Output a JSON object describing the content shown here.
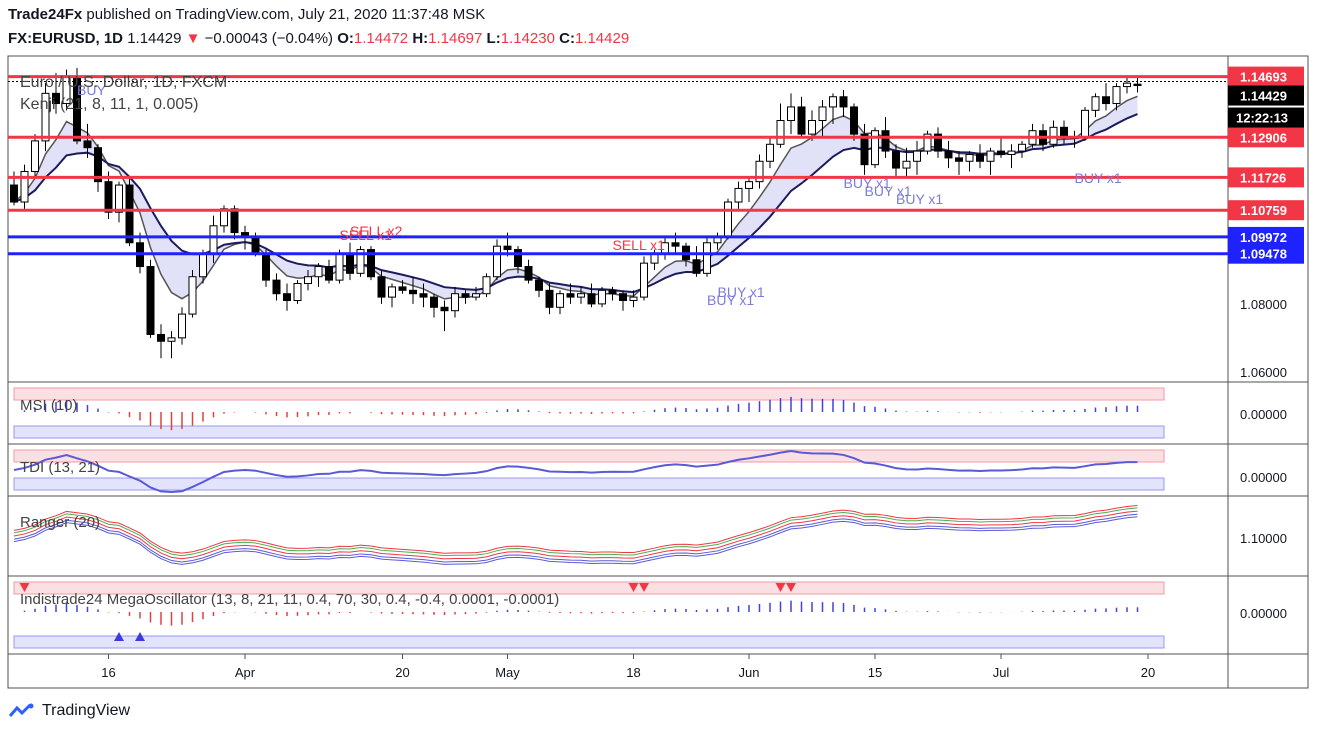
{
  "header": {
    "publisher": "Trade24Fx",
    "published_text": "published on TradingView.com, July 21, 2020 11:37:48 MSK",
    "symbol": "FX:EURUSD, 1D",
    "last": "1.14429",
    "change": "−0.00043 (−0.04%)",
    "o_label": "O:",
    "o": "1.14472",
    "h_label": "H:",
    "h": "1.14697",
    "l_label": "L:",
    "l": "1.14230",
    "c_label": "C:",
    "c": "1.14429"
  },
  "footer": {
    "brand": "TradingView"
  },
  "chart_data": {
    "type": "candlestick",
    "title": "Euro / U.S. Dollar, 1D, FXCM",
    "indicator_label": "Kenji (21, 8, 11, 1, 0.005)",
    "x_ticks": [
      "16",
      "Apr",
      "20",
      "May",
      "18",
      "Jun",
      "15",
      "Jul",
      "20"
    ],
    "y_ticks": [
      "1.08000",
      "1.06000"
    ],
    "y_range": [
      1.057,
      1.153
    ],
    "price_lines": [
      {
        "label": "1.14693",
        "value": 1.14693,
        "color": "#f23645"
      },
      {
        "label": "1.12906",
        "value": 1.12906,
        "color": "#f23645"
      },
      {
        "label": "1.11726",
        "value": 1.11726,
        "color": "#f23645"
      },
      {
        "label": "1.10759",
        "value": 1.10759,
        "color": "#f23645"
      },
      {
        "label": "1.09972",
        "value": 1.09972,
        "color": "#1e22ff"
      },
      {
        "label": "1.09478",
        "value": 1.09478,
        "color": "#1e22ff"
      }
    ],
    "last_price_label": "1.14429",
    "countdown_label": "12:22:13",
    "annotations": [
      "BUY",
      "SELL x1",
      "SELL x2",
      "SELL x1",
      "BUY x1",
      "BUY x1",
      "BUY x1",
      "BUY x1",
      "BUY x1",
      "BUY x1"
    ],
    "candles": [
      [
        1.115,
        1.119,
        1.109,
        1.11
      ],
      [
        1.11,
        1.121,
        1.108,
        1.119
      ],
      [
        1.119,
        1.13,
        1.117,
        1.128
      ],
      [
        1.128,
        1.145,
        1.125,
        1.142
      ],
      [
        1.142,
        1.148,
        1.136,
        1.139
      ],
      [
        1.139,
        1.149,
        1.137,
        1.147
      ],
      [
        1.147,
        1.1495,
        1.127,
        1.128
      ],
      [
        1.128,
        1.133,
        1.123,
        1.126
      ],
      [
        1.126,
        1.127,
        1.113,
        1.116
      ],
      [
        1.116,
        1.119,
        1.105,
        1.107
      ],
      [
        1.107,
        1.116,
        1.104,
        1.115
      ],
      [
        1.115,
        1.117,
        1.097,
        1.098
      ],
      [
        1.098,
        1.101,
        1.089,
        1.091
      ],
      [
        1.091,
        1.093,
        1.07,
        1.071
      ],
      [
        1.071,
        1.074,
        1.064,
        1.069
      ],
      [
        1.069,
        1.072,
        1.064,
        1.07
      ],
      [
        1.07,
        1.079,
        1.068,
        1.077
      ],
      [
        1.077,
        1.09,
        1.076,
        1.088
      ],
      [
        1.088,
        1.096,
        1.086,
        1.095
      ],
      [
        1.095,
        1.106,
        1.092,
        1.103
      ],
      [
        1.103,
        1.109,
        1.101,
        1.108
      ],
      [
        1.108,
        1.109,
        1.099,
        1.101
      ],
      [
        1.101,
        1.103,
        1.096,
        1.1
      ],
      [
        1.1,
        1.101,
        1.094,
        1.095
      ],
      [
        1.095,
        1.096,
        1.085,
        1.087
      ],
      [
        1.087,
        1.089,
        1.081,
        1.083
      ],
      [
        1.083,
        1.086,
        1.078,
        1.081
      ],
      [
        1.081,
        1.087,
        1.08,
        1.086
      ],
      [
        1.086,
        1.09,
        1.084,
        1.088
      ],
      [
        1.088,
        1.092,
        1.085,
        1.091
      ],
      [
        1.091,
        1.093,
        1.086,
        1.087
      ],
      [
        1.087,
        1.096,
        1.086,
        1.095
      ],
      [
        1.095,
        1.098,
        1.087,
        1.089
      ],
      [
        1.089,
        1.097,
        1.088,
        1.096
      ],
      [
        1.096,
        1.097,
        1.087,
        1.088
      ],
      [
        1.088,
        1.09,
        1.08,
        1.082
      ],
      [
        1.082,
        1.086,
        1.079,
        1.085
      ],
      [
        1.085,
        1.087,
        1.083,
        1.084
      ],
      [
        1.084,
        1.088,
        1.08,
        1.083
      ],
      [
        1.083,
        1.086,
        1.079,
        1.082
      ],
      [
        1.082,
        1.083,
        1.076,
        1.079
      ],
      [
        1.079,
        1.081,
        1.072,
        1.078
      ],
      [
        1.078,
        1.085,
        1.076,
        1.083
      ],
      [
        1.083,
        1.084,
        1.08,
        1.082
      ],
      [
        1.082,
        1.085,
        1.081,
        1.083
      ],
      [
        1.083,
        1.089,
        1.082,
        1.088
      ],
      [
        1.088,
        1.099,
        1.087,
        1.097
      ],
      [
        1.097,
        1.101,
        1.094,
        1.096
      ],
      [
        1.096,
        1.097,
        1.089,
        1.091
      ],
      [
        1.091,
        1.093,
        1.086,
        1.087
      ],
      [
        1.087,
        1.088,
        1.082,
        1.084
      ],
      [
        1.084,
        1.086,
        1.077,
        1.079
      ],
      [
        1.079,
        1.084,
        1.077,
        1.083
      ],
      [
        1.083,
        1.086,
        1.08,
        1.082
      ],
      [
        1.082,
        1.085,
        1.08,
        1.083
      ],
      [
        1.083,
        1.086,
        1.079,
        1.08
      ],
      [
        1.08,
        1.085,
        1.079,
        1.084
      ],
      [
        1.084,
        1.085,
        1.081,
        1.083
      ],
      [
        1.083,
        1.084,
        1.078,
        1.081
      ],
      [
        1.081,
        1.084,
        1.079,
        1.082
      ],
      [
        1.082,
        1.094,
        1.081,
        1.092
      ],
      [
        1.092,
        1.096,
        1.09,
        1.095
      ],
      [
        1.095,
        1.1,
        1.093,
        1.098
      ],
      [
        1.098,
        1.101,
        1.095,
        1.097
      ],
      [
        1.097,
        1.098,
        1.091,
        1.093
      ],
      [
        1.093,
        1.097,
        1.088,
        1.089
      ],
      [
        1.089,
        1.1,
        1.088,
        1.098
      ],
      [
        1.098,
        1.101,
        1.096,
        1.1
      ],
      [
        1.1,
        1.111,
        1.099,
        1.11
      ],
      [
        1.11,
        1.116,
        1.108,
        1.114
      ],
      [
        1.114,
        1.117,
        1.11,
        1.116
      ],
      [
        1.116,
        1.124,
        1.114,
        1.122
      ],
      [
        1.122,
        1.129,
        1.12,
        1.127
      ],
      [
        1.127,
        1.139,
        1.126,
        1.134
      ],
      [
        1.134,
        1.142,
        1.13,
        1.138
      ],
      [
        1.138,
        1.141,
        1.129,
        1.13
      ],
      [
        1.13,
        1.137,
        1.128,
        1.134
      ],
      [
        1.134,
        1.14,
        1.129,
        1.138
      ],
      [
        1.138,
        1.142,
        1.133,
        1.141
      ],
      [
        1.141,
        1.143,
        1.135,
        1.138
      ],
      [
        1.138,
        1.139,
        1.128,
        1.13
      ],
      [
        1.13,
        1.133,
        1.118,
        1.121
      ],
      [
        1.121,
        1.132,
        1.12,
        1.131
      ],
      [
        1.131,
        1.135,
        1.123,
        1.125
      ],
      [
        1.125,
        1.127,
        1.117,
        1.12
      ],
      [
        1.12,
        1.126,
        1.117,
        1.122
      ],
      [
        1.122,
        1.128,
        1.118,
        1.125
      ],
      [
        1.125,
        1.131,
        1.124,
        1.13
      ],
      [
        1.13,
        1.132,
        1.123,
        1.125
      ],
      [
        1.125,
        1.128,
        1.12,
        1.123
      ],
      [
        1.123,
        1.125,
        1.118,
        1.122
      ],
      [
        1.122,
        1.125,
        1.119,
        1.124
      ],
      [
        1.124,
        1.127,
        1.12,
        1.122
      ],
      [
        1.122,
        1.126,
        1.118,
        1.125
      ],
      [
        1.125,
        1.129,
        1.123,
        1.124
      ],
      [
        1.124,
        1.127,
        1.12,
        1.125
      ],
      [
        1.125,
        1.128,
        1.123,
        1.127
      ],
      [
        1.127,
        1.133,
        1.126,
        1.131
      ],
      [
        1.131,
        1.133,
        1.125,
        1.127
      ],
      [
        1.127,
        1.134,
        1.126,
        1.132
      ],
      [
        1.132,
        1.134,
        1.127,
        1.129
      ],
      [
        1.129,
        1.131,
        1.126,
        1.129
      ],
      [
        1.129,
        1.138,
        1.128,
        1.137
      ],
      [
        1.137,
        1.142,
        1.135,
        1.141
      ],
      [
        1.141,
        1.145,
        1.137,
        1.139
      ],
      [
        1.139,
        1.145,
        1.137,
        1.144
      ],
      [
        1.144,
        1.147,
        1.142,
        1.145
      ],
      [
        1.1447,
        1.147,
        1.1423,
        1.1443
      ]
    ],
    "subpanels": [
      {
        "label": "MSI (10)",
        "y_tick": "0.00000"
      },
      {
        "label": "TDI (13, 21)",
        "y_tick": "0.00000"
      },
      {
        "label": "Ranger (20)",
        "y_tick": "1.10000"
      },
      {
        "label": "Indistrade24 MegaOscillator (13, 8, 21, 11, 0.4, 70, 30, 0.4, -0.4, 0.0001, -0.0001)",
        "y_tick": "0.00000"
      }
    ]
  }
}
